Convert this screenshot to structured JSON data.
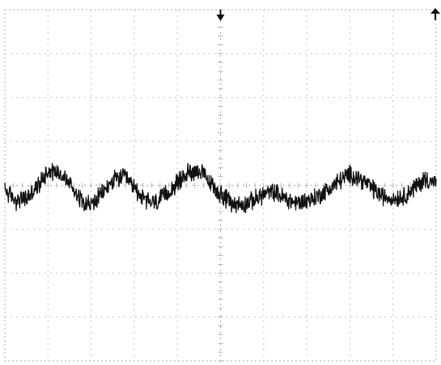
{
  "chart_data": {
    "type": "line",
    "title": "",
    "xlabel": "",
    "ylabel": "",
    "grid": true,
    "grid_divisions": {
      "x": 10,
      "y": 8
    },
    "xlim": [
      0,
      10
    ],
    "ylim": [
      -4,
      4
    ],
    "markers": [
      {
        "kind": "trigger-time",
        "symbol": "down-arrow",
        "x": 5.0
      },
      {
        "kind": "trigger-level",
        "symbol": "left-arrow",
        "y": 4.0
      }
    ],
    "series": [
      {
        "color": "#111111",
        "x": [
          0,
          0.25,
          0.5,
          0.75,
          1,
          1.25,
          1.5,
          1.75,
          2,
          2.25,
          2.5,
          2.75,
          3,
          3.25,
          3.5,
          3.75,
          4,
          4.25,
          4.5,
          4.75,
          5,
          5.25,
          5.5,
          5.75,
          6,
          6.25,
          6.5,
          6.75,
          7,
          7.25,
          7.5,
          7.75,
          8,
          8.25,
          8.5,
          8.75,
          9,
          9.25,
          9.5,
          9.75,
          10
        ],
        "values": [
          -0.1,
          -0.35,
          -0.3,
          -0.05,
          0.35,
          0.3,
          0.05,
          -0.3,
          -0.45,
          -0.2,
          0.1,
          0.2,
          -0.05,
          -0.35,
          -0.4,
          -0.2,
          0.05,
          0.3,
          0.35,
          0.05,
          -0.2,
          -0.4,
          -0.45,
          -0.35,
          -0.2,
          -0.15,
          -0.3,
          -0.4,
          -0.35,
          -0.25,
          -0.1,
          0.1,
          0.25,
          0.15,
          -0.05,
          -0.25,
          -0.3,
          -0.25,
          -0.05,
          0.15,
          0.05
        ]
      }
    ]
  }
}
